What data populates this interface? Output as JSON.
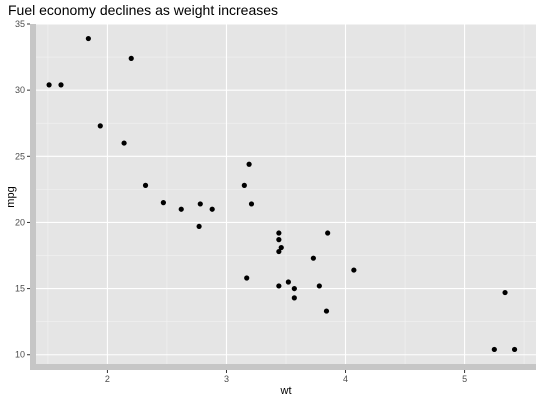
{
  "chart_data": {
    "type": "scatter",
    "title": "Fuel economy declines as weight increases",
    "xlabel": "wt",
    "ylabel": "mpg",
    "xlim": [
      1.4,
      5.6
    ],
    "ylim": [
      9.3,
      35.0
    ],
    "x_ticks": [
      2,
      3,
      4,
      5
    ],
    "y_ticks": [
      10,
      15,
      20,
      25,
      30,
      35
    ],
    "x_tick_labels": [
      "2",
      "3",
      "4",
      "5"
    ],
    "y_tick_labels": [
      "10",
      "15",
      "20",
      "25",
      "30",
      "35"
    ],
    "grid": true,
    "legend": "none",
    "colors": {
      "panel_background": "#e5e5e5",
      "grid_major": "#ffffff",
      "grid_minor": "#f2f2f2",
      "point": "#000000",
      "axis_band": "#c6c6c6"
    },
    "points": [
      {
        "x": 1.84,
        "y": 33.9
      },
      {
        "x": 2.2,
        "y": 32.4
      },
      {
        "x": 1.51,
        "y": 30.4
      },
      {
        "x": 1.61,
        "y": 30.4
      },
      {
        "x": 1.94,
        "y": 27.3
      },
      {
        "x": 2.14,
        "y": 26.0
      },
      {
        "x": 3.19,
        "y": 24.4
      },
      {
        "x": 2.32,
        "y": 22.8
      },
      {
        "x": 3.15,
        "y": 22.8
      },
      {
        "x": 2.47,
        "y": 21.5
      },
      {
        "x": 3.21,
        "y": 21.4
      },
      {
        "x": 2.78,
        "y": 21.4
      },
      {
        "x": 2.62,
        "y": 21.0
      },
      {
        "x": 2.88,
        "y": 21.0
      },
      {
        "x": 2.77,
        "y": 19.7
      },
      {
        "x": 3.44,
        "y": 19.2
      },
      {
        "x": 3.85,
        "y": 19.2
      },
      {
        "x": 3.44,
        "y": 18.7
      },
      {
        "x": 3.46,
        "y": 18.1
      },
      {
        "x": 3.44,
        "y": 17.8
      },
      {
        "x": 3.73,
        "y": 17.3
      },
      {
        "x": 4.07,
        "y": 16.4
      },
      {
        "x": 3.17,
        "y": 15.8
      },
      {
        "x": 3.52,
        "y": 15.5
      },
      {
        "x": 3.78,
        "y": 15.2
      },
      {
        "x": 3.44,
        "y": 15.2
      },
      {
        "x": 3.57,
        "y": 15.0
      },
      {
        "x": 5.34,
        "y": 14.7
      },
      {
        "x": 3.57,
        "y": 14.3
      },
      {
        "x": 3.84,
        "y": 13.3
      },
      {
        "x": 5.25,
        "y": 10.4
      },
      {
        "x": 5.42,
        "y": 10.4
      }
    ]
  }
}
